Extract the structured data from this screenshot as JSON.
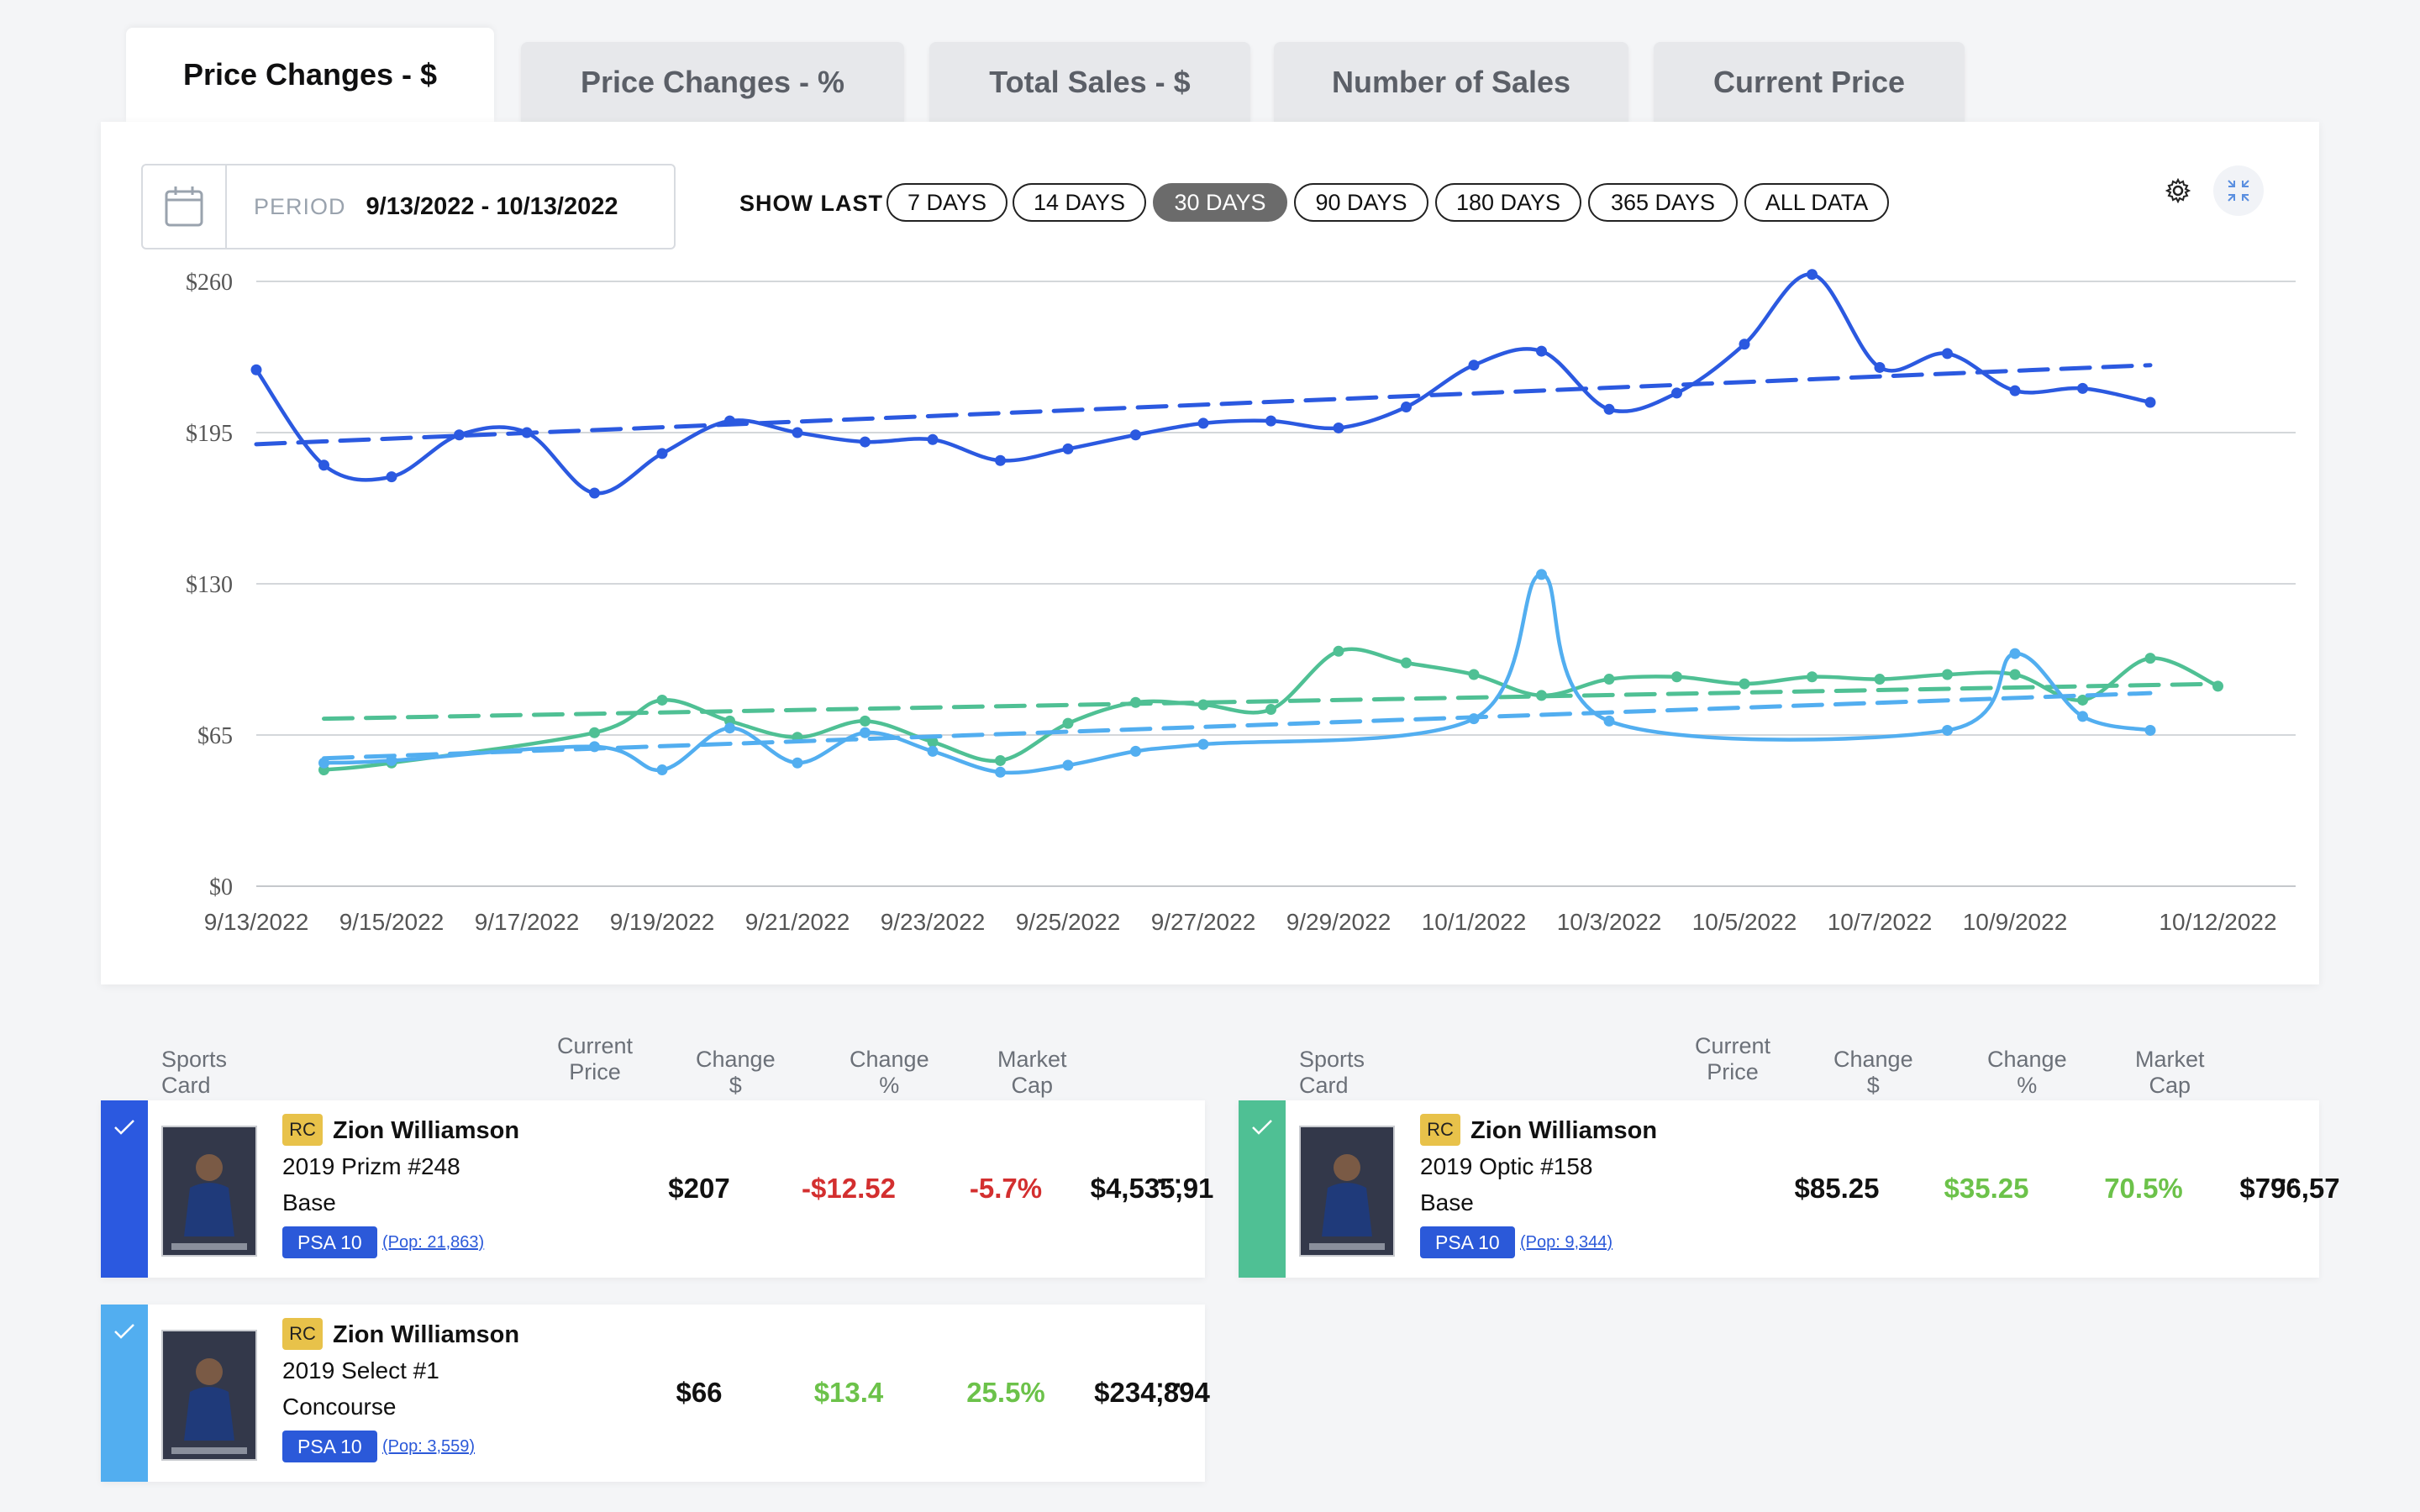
{
  "tabs": [
    {
      "label": "Price Changes - $",
      "active": true
    },
    {
      "label": "Price Changes - %",
      "active": false
    },
    {
      "label": "Total Sales - $",
      "active": false
    },
    {
      "label": "Number of Sales",
      "active": false
    },
    {
      "label": "Current Price",
      "active": false
    }
  ],
  "period": {
    "label": "PERIOD",
    "value": "9/13/2022 - 10/13/2022"
  },
  "show_last": {
    "label": "SHOW LAST",
    "options": [
      "7 DAYS",
      "14 DAYS",
      "30 DAYS",
      "90 DAYS",
      "180 DAYS",
      "365 DAYS",
      "ALL DATA"
    ],
    "selected": "30 DAYS"
  },
  "icons": {
    "settings": "gear-icon",
    "collapse": "collapse-icon",
    "calendar": "calendar-icon"
  },
  "chart_data": {
    "type": "line",
    "x": [
      "9/13/2022",
      "9/14/2022",
      "9/15/2022",
      "9/16/2022",
      "9/17/2022",
      "9/18/2022",
      "9/19/2022",
      "9/20/2022",
      "9/21/2022",
      "9/22/2022",
      "9/23/2022",
      "9/24/2022",
      "9/25/2022",
      "9/26/2022",
      "9/27/2022",
      "9/28/2022",
      "9/29/2022",
      "9/30/2022",
      "10/1/2022",
      "10/2/2022",
      "10/3/2022",
      "10/4/2022",
      "10/5/2022",
      "10/6/2022",
      "10/7/2022",
      "10/8/2022",
      "10/9/2022",
      "10/10/2022",
      "10/11/2022",
      "10/12/2022",
      "10/13/2022"
    ],
    "x_tick_labels": [
      "9/13/2022",
      "9/15/2022",
      "9/17/2022",
      "9/19/2022",
      "9/21/2022",
      "9/23/2022",
      "9/25/2022",
      "9/27/2022",
      "9/29/2022",
      "10/1/2022",
      "10/3/2022",
      "10/5/2022",
      "10/7/2022",
      "10/9/2022",
      "10/12/2022"
    ],
    "y_tick_labels": [
      "$0",
      "$65",
      "$130",
      "$195",
      "$260"
    ],
    "ylim": [
      0,
      260
    ],
    "grid": true,
    "series": [
      {
        "color": "#2b59e0",
        "trend": [
          190,
          224
        ],
        "values": [
          222,
          181,
          176,
          194,
          195,
          169,
          186,
          200,
          195,
          191,
          192,
          183,
          188,
          194,
          199,
          200,
          197,
          206,
          224,
          230,
          205,
          212,
          233,
          263,
          223,
          229,
          213,
          214,
          208,
          null,
          null
        ]
      },
      {
        "color": "#4fc094",
        "trend": [
          72,
          87
        ],
        "values": [
          null,
          50,
          53,
          null,
          null,
          66,
          80,
          71,
          64,
          71,
          62,
          54,
          70,
          79,
          78,
          76,
          101,
          96,
          91,
          82,
          89,
          90,
          87,
          90,
          89,
          91,
          91,
          80,
          98,
          86,
          null
        ]
      },
      {
        "color": "#52aef0",
        "trend": [
          55,
          83
        ],
        "values": [
          null,
          53,
          54,
          null,
          null,
          60,
          50,
          68,
          53,
          66,
          58,
          49,
          52,
          58,
          61,
          null,
          null,
          null,
          72,
          134,
          71,
          null,
          null,
          null,
          null,
          67,
          100,
          73,
          67,
          null,
          null
        ]
      }
    ]
  },
  "table_headers": {
    "sports_card": "Sports Card",
    "current_price": "Current Price",
    "change_dollar": "Change $",
    "change_pct": "Change %",
    "market_cap": "Market Cap"
  },
  "cards": [
    {
      "badge": "RC",
      "name": "Zion Williamson",
      "line1": "2019 Prizm #248",
      "line2": "Base",
      "grade": "PSA 10",
      "pop": "(Pop: 21,863)",
      "price": "$207",
      "change_dollar": "-$12.52",
      "change_pct": "-5.7%",
      "market_cap": "$4,535,91",
      "accent": "#2b59e0",
      "change_color": "#d32f2f"
    },
    {
      "badge": "RC",
      "name": "Zion Williamson",
      "line1": "2019 Optic #158",
      "line2": "Base",
      "grade": "PSA 10",
      "pop": "(Pop: 9,344)",
      "price": "$85.25",
      "change_dollar": "$35.25",
      "change_pct": "70.5%",
      "market_cap": "$796,57",
      "accent": "#4fc094",
      "change_color": "#6cc24a"
    },
    {
      "badge": "RC",
      "name": "Zion Williamson",
      "line1": "2019 Select #1",
      "line2": "Concourse",
      "grade": "PSA 10",
      "pop": "(Pop: 3,559)",
      "price": "$66",
      "change_dollar": "$13.4",
      "change_pct": "25.5%",
      "market_cap": "$234,894",
      "accent": "#52aef0",
      "change_color": "#6cc24a"
    }
  ],
  "more_label": "···"
}
